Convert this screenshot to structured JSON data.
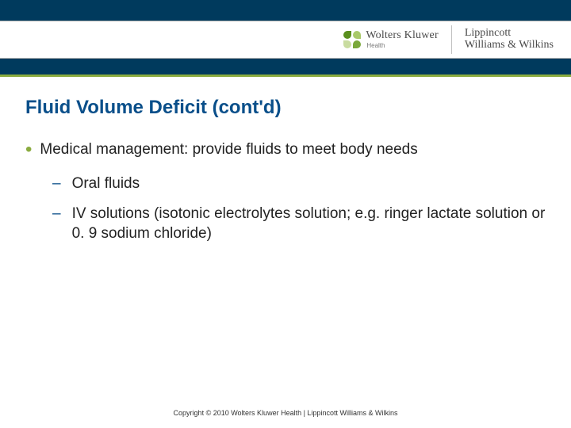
{
  "colors": {
    "header_bg": "#003a5d",
    "accent_green": "#8aab3f",
    "title_blue": "#0a4f8a",
    "text": "#222222",
    "brand_text": "#4a4a4a",
    "divider": "#c0c0c0"
  },
  "header": {
    "brand_left_main": "Wolters Kluwer",
    "brand_left_sub": "Health",
    "brand_right_line1": "Lippincott",
    "brand_right_line2": "Williams & Wilkins",
    "logo_petals": [
      "#5a8f1e",
      "#a9c96a",
      "#7aa83a",
      "#c9dca0"
    ]
  },
  "slide": {
    "title": "Fluid Volume Deficit (cont'd)",
    "bullets_l1": [
      {
        "text": "Medical management: provide fluids to meet body needs"
      }
    ],
    "bullets_l2": [
      {
        "text": "Oral fluids"
      },
      {
        "text": "IV solutions (isotonic electrolytes solution; e.g. ringer lactate solution or 0. 9 sodium chloride)"
      }
    ]
  },
  "footer": {
    "copyright": "Copyright © 2010 Wolters Kluwer Health | Lippincott Williams & Wilkins"
  }
}
